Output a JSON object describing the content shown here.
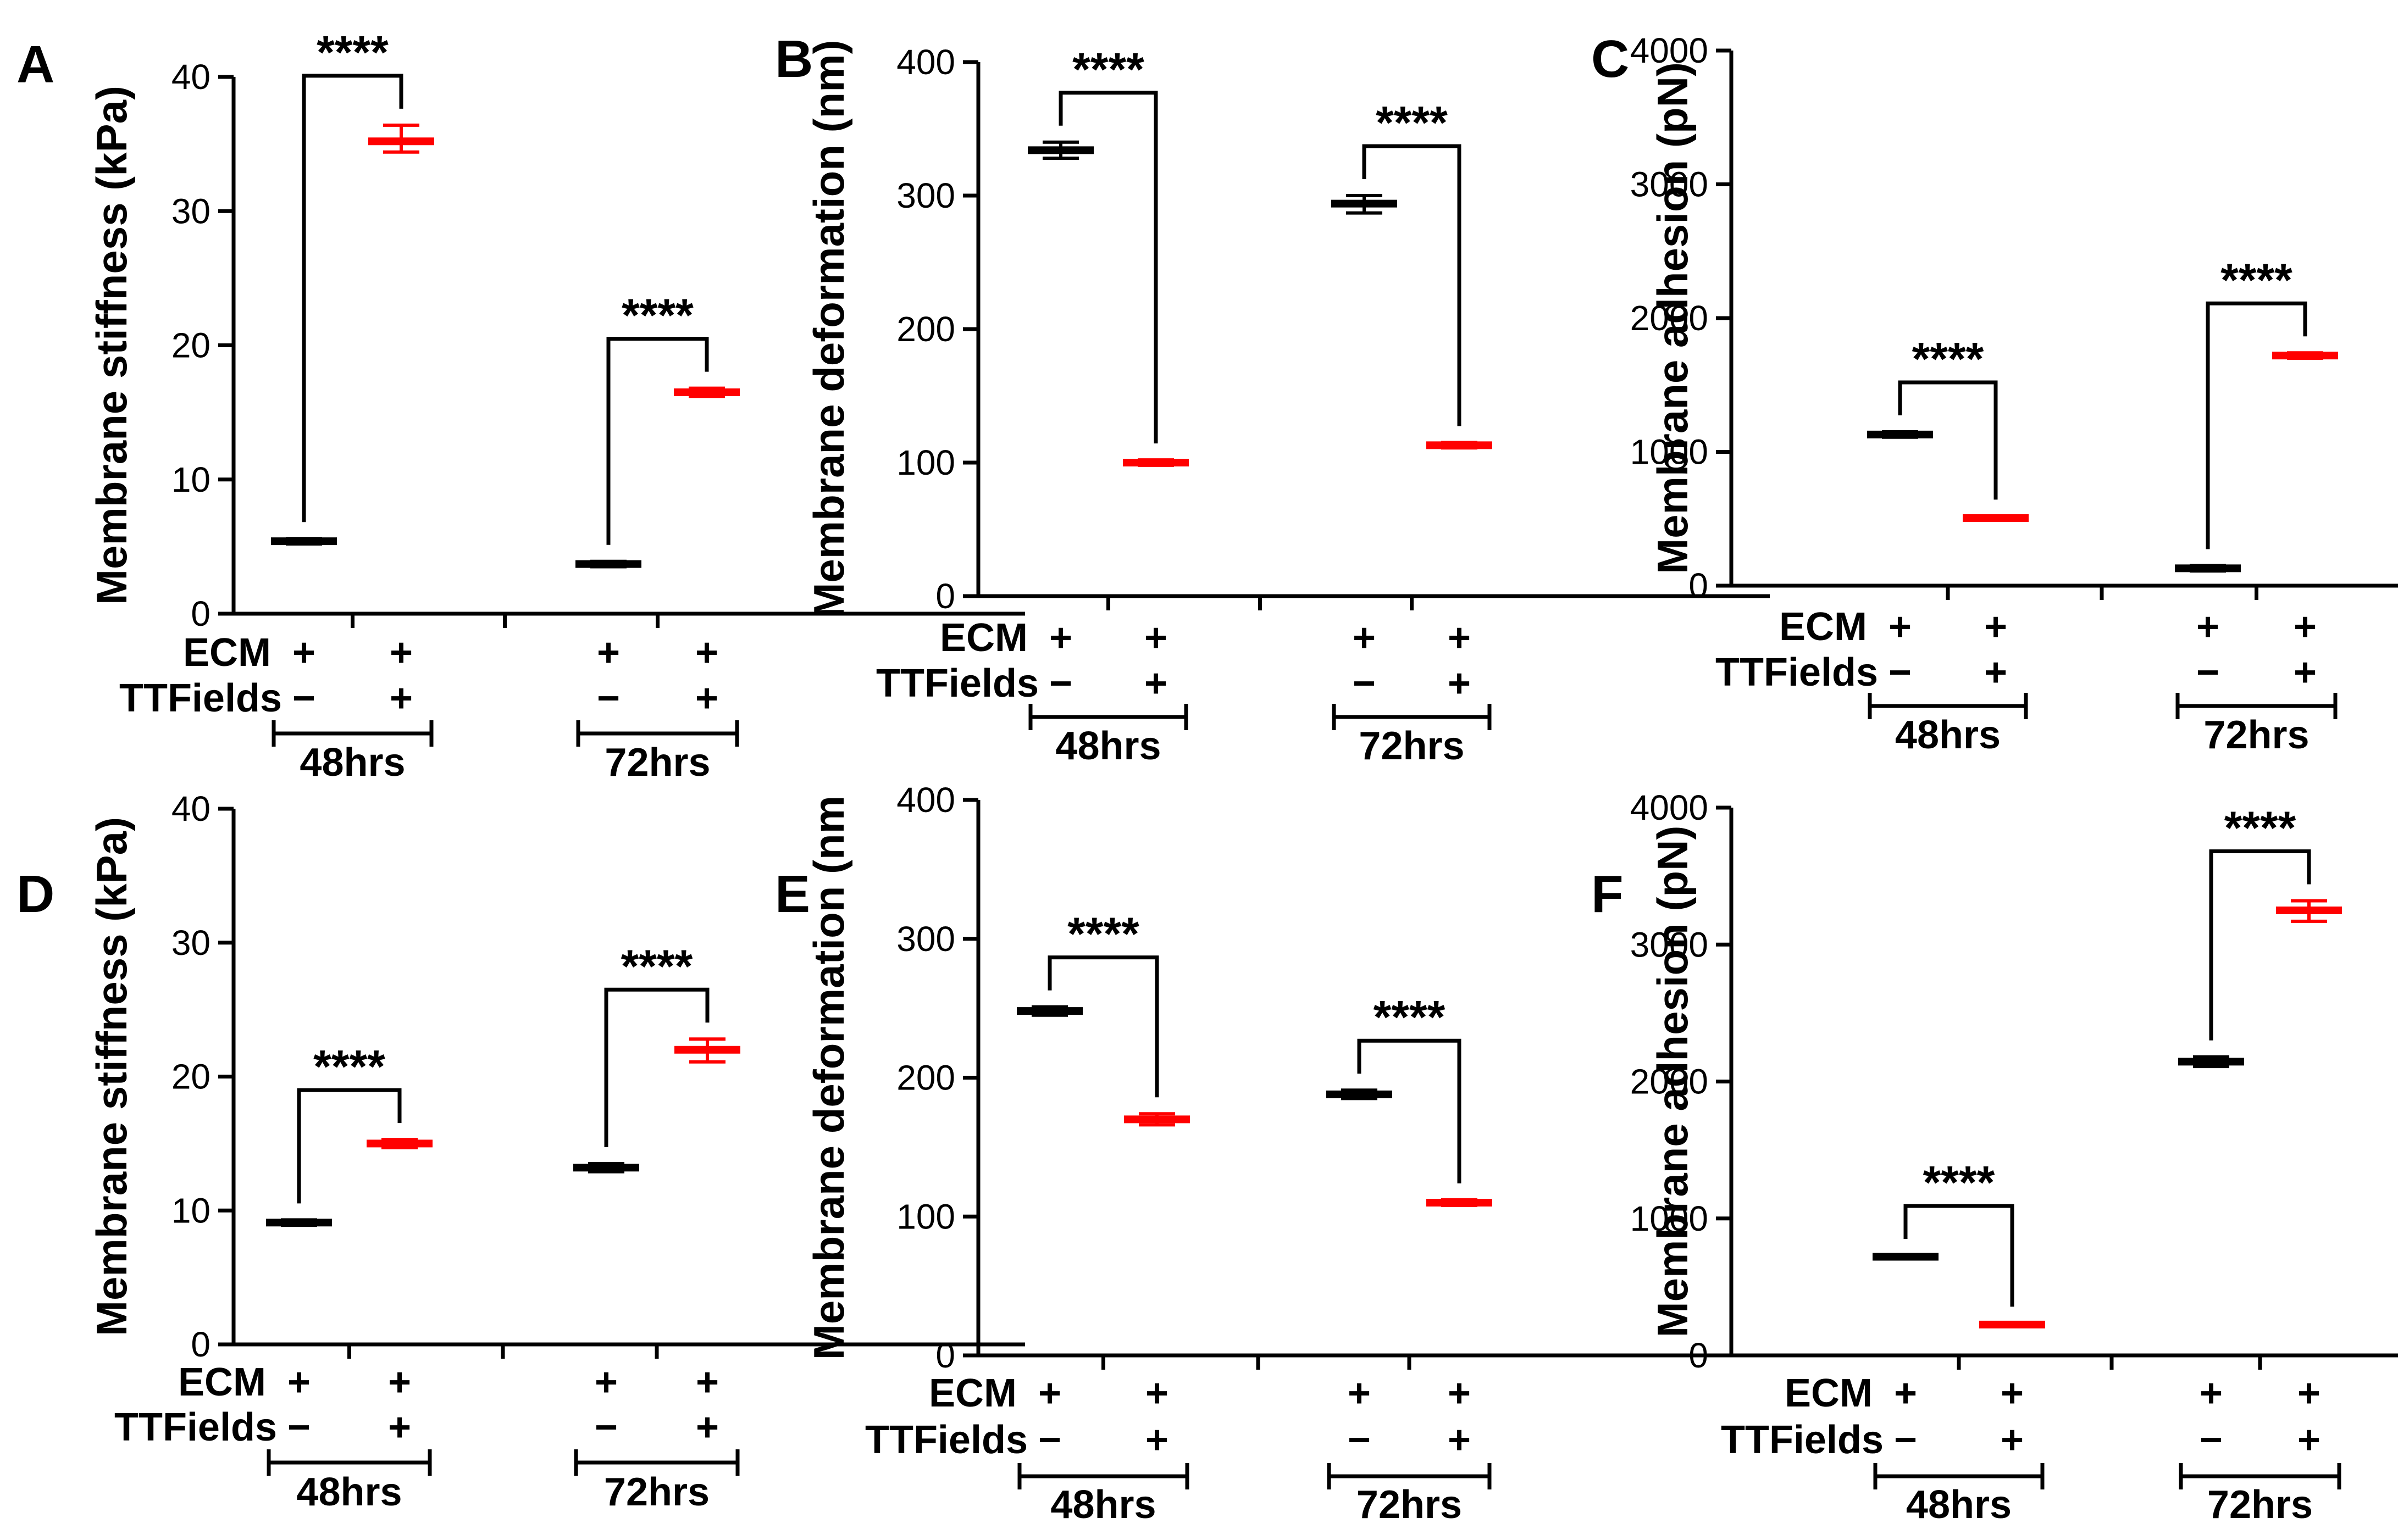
{
  "colors": {
    "control": "#000000",
    "treated": "#ff0000"
  },
  "chart_data": [
    {
      "panel": "A",
      "type": "scatter",
      "ylabel": "Membrane stiffness (kPa)",
      "ylim": [
        0,
        40
      ],
      "yticks": [
        "0",
        "10",
        "20",
        "30",
        "40"
      ],
      "row_labels": {
        "ecm": "ECM",
        "ttf": "TTFields"
      },
      "groups": [
        {
          "label": "48hrs",
          "significance": "****",
          "points": [
            {
              "ecm": "+",
              "ttf": "−",
              "condition": "control",
              "mean": 5.4,
              "lo": 5.2,
              "hi": 5.6
            },
            {
              "ecm": "+",
              "ttf": "+",
              "condition": "treated",
              "mean": 35.2,
              "lo": 34.4,
              "hi": 36.4
            }
          ]
        },
        {
          "label": "72hrs",
          "significance": "****",
          "points": [
            {
              "ecm": "+",
              "ttf": "−",
              "condition": "control",
              "mean": 3.7,
              "lo": 3.5,
              "hi": 3.9
            },
            {
              "ecm": "+",
              "ttf": "+",
              "condition": "treated",
              "mean": 16.5,
              "lo": 16.2,
              "hi": 16.8
            }
          ]
        }
      ]
    },
    {
      "panel": "B",
      "type": "scatter",
      "ylabel": "Membrane deformation (nm)",
      "ylim": [
        0,
        400
      ],
      "yticks": [
        "0",
        "100",
        "200",
        "300",
        "400"
      ],
      "row_labels": {
        "ecm": "ECM",
        "ttf": "TTFields"
      },
      "groups": [
        {
          "label": "48hrs",
          "significance": "****",
          "points": [
            {
              "ecm": "+",
              "ttf": "−",
              "condition": "control",
              "mean": 334,
              "lo": 328,
              "hi": 340
            },
            {
              "ecm": "+",
              "ttf": "+",
              "condition": "treated",
              "mean": 100,
              "lo": 98,
              "hi": 102
            }
          ]
        },
        {
          "label": "72hrs",
          "significance": "****",
          "points": [
            {
              "ecm": "+",
              "ttf": "−",
              "condition": "control",
              "mean": 294,
              "lo": 287,
              "hi": 300
            },
            {
              "ecm": "+",
              "ttf": "+",
              "condition": "treated",
              "mean": 113,
              "lo": 111,
              "hi": 115
            }
          ]
        }
      ]
    },
    {
      "panel": "C",
      "type": "scatter",
      "ylabel": "Membrane adhesion (pN)",
      "ylim": [
        0,
        4000
      ],
      "yticks": [
        "0",
        "1000",
        "2000",
        "3000",
        "4000"
      ],
      "row_labels": {
        "ecm": "ECM",
        "ttf": "TTFields"
      },
      "groups": [
        {
          "label": "48hrs",
          "significance": "****",
          "points": [
            {
              "ecm": "+",
              "ttf": "−",
              "condition": "control",
              "mean": 1130,
              "lo": 1110,
              "hi": 1150
            },
            {
              "ecm": "+",
              "ttf": "+",
              "condition": "treated",
              "mean": 505,
              "lo": 490,
              "hi": 520
            }
          ]
        },
        {
          "label": "72hrs",
          "significance": "****",
          "points": [
            {
              "ecm": "+",
              "ttf": "−",
              "condition": "control",
              "mean": 130,
              "lo": 110,
              "hi": 150
            },
            {
              "ecm": "+",
              "ttf": "+",
              "condition": "treated",
              "mean": 1720,
              "lo": 1700,
              "hi": 1740
            }
          ]
        }
      ]
    },
    {
      "panel": "D",
      "type": "scatter",
      "ylabel": "Membrane stiffness (kPa)",
      "ylim": [
        0,
        40
      ],
      "yticks": [
        "0",
        "10",
        "20",
        "30",
        "40"
      ],
      "row_labels": {
        "ecm": "ECM",
        "ttf": "TTFields"
      },
      "groups": [
        {
          "label": "48hrs",
          "significance": "****",
          "points": [
            {
              "ecm": "+",
              "ttf": "−",
              "condition": "control",
              "mean": 9.1,
              "lo": 8.9,
              "hi": 9.3
            },
            {
              "ecm": "+",
              "ttf": "+",
              "condition": "treated",
              "mean": 15.0,
              "lo": 14.7,
              "hi": 15.3
            }
          ]
        },
        {
          "label": "72hrs",
          "significance": "****",
          "points": [
            {
              "ecm": "+",
              "ttf": "−",
              "condition": "control",
              "mean": 13.2,
              "lo": 12.9,
              "hi": 13.5
            },
            {
              "ecm": "+",
              "ttf": "+",
              "condition": "treated",
              "mean": 22.0,
              "lo": 21.1,
              "hi": 22.8
            }
          ]
        }
      ]
    },
    {
      "panel": "E",
      "type": "scatter",
      "ylabel": "Membrane deformation (nm",
      "ylim": [
        0,
        400
      ],
      "yticks": [
        "0",
        "100",
        "200",
        "300",
        "400"
      ],
      "row_labels": {
        "ecm": "ECM",
        "ttf": "TTFields"
      },
      "groups": [
        {
          "label": "48hrs",
          "significance": "****",
          "points": [
            {
              "ecm": "+",
              "ttf": "−",
              "condition": "control",
              "mean": 248,
              "lo": 245,
              "hi": 251
            },
            {
              "ecm": "+",
              "ttf": "+",
              "condition": "treated",
              "mean": 170,
              "lo": 166,
              "hi": 174
            }
          ]
        },
        {
          "label": "72hrs",
          "significance": "****",
          "points": [
            {
              "ecm": "+",
              "ttf": "−",
              "condition": "control",
              "mean": 188,
              "lo": 185,
              "hi": 191
            },
            {
              "ecm": "+",
              "ttf": "+",
              "condition": "treated",
              "mean": 110,
              "lo": 108,
              "hi": 112
            }
          ]
        }
      ]
    },
    {
      "panel": "F",
      "type": "scatter",
      "ylabel": "Membrane adhesion (pN)",
      "ylim": [
        0,
        4000
      ],
      "yticks": [
        "0",
        "1000",
        "2000",
        "3000",
        "4000"
      ],
      "row_labels": {
        "ecm": "ECM",
        "ttf": "TTFields"
      },
      "groups": [
        {
          "label": "48hrs",
          "significance": "****",
          "points": [
            {
              "ecm": "+",
              "ttf": "−",
              "condition": "control",
              "mean": 720,
              "lo": 710,
              "hi": 730
            },
            {
              "ecm": "+",
              "ttf": "+",
              "condition": "treated",
              "mean": 225,
              "lo": 215,
              "hi": 235
            }
          ]
        },
        {
          "label": "72hrs",
          "significance": "****",
          "points": [
            {
              "ecm": "+",
              "ttf": "−",
              "condition": "control",
              "mean": 2145,
              "lo": 2110,
              "hi": 2180
            },
            {
              "ecm": "+",
              "ttf": "+",
              "condition": "treated",
              "mean": 3250,
              "lo": 3170,
              "hi": 3320
            }
          ]
        }
      ]
    }
  ]
}
